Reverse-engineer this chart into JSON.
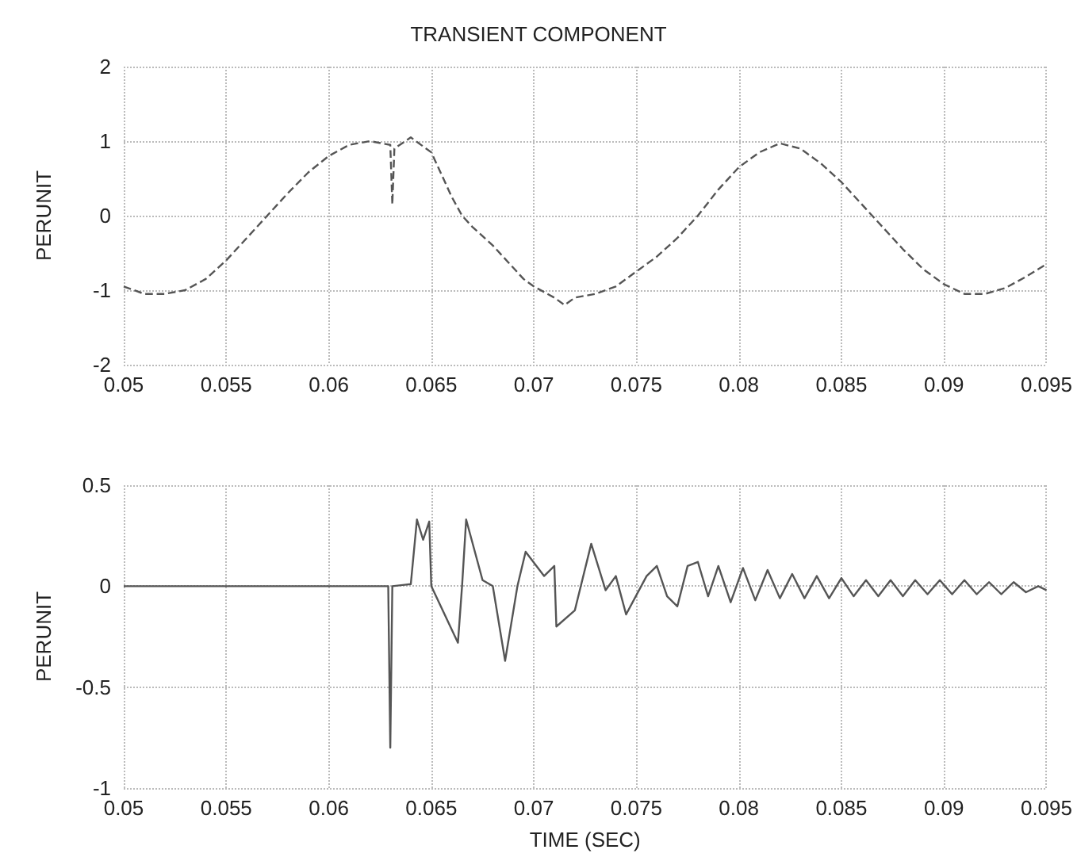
{
  "chart_data": [
    {
      "type": "line",
      "title": "TRANSIENT COMPONENT",
      "ylabel": "PERUNIT",
      "xlim": [
        0.05,
        0.095
      ],
      "xticks": [
        0.05,
        0.055,
        0.06,
        0.065,
        0.07,
        0.075,
        0.08,
        0.085,
        0.09,
        0.095
      ],
      "ylim": [
        -2,
        2
      ],
      "yticks": [
        -2,
        -1,
        0,
        1,
        2
      ],
      "grid": true,
      "line_style": "dashed",
      "marker": "none",
      "series": [
        {
          "color": "#555555",
          "x": [
            0.05,
            0.051,
            0.052,
            0.053,
            0.054,
            0.055,
            0.056,
            0.057,
            0.058,
            0.059,
            0.06,
            0.061,
            0.062,
            0.063,
            0.0631,
            0.0632,
            0.064,
            0.065,
            0.0655,
            0.066,
            0.0665,
            0.067,
            0.068,
            0.069,
            0.0695,
            0.07,
            0.071,
            0.0715,
            0.072,
            0.073,
            0.074,
            0.075,
            0.076,
            0.077,
            0.078,
            0.079,
            0.08,
            0.081,
            0.082,
            0.083,
            0.084,
            0.085,
            0.086,
            0.087,
            0.088,
            0.089,
            0.09,
            0.091,
            0.092,
            0.093,
            0.094,
            0.095
          ],
          "values": [
            -0.95,
            -1.05,
            -1.05,
            -1.0,
            -0.85,
            -0.6,
            -0.3,
            0.0,
            0.3,
            0.58,
            0.8,
            0.95,
            1.0,
            0.95,
            0.15,
            0.9,
            1.05,
            0.85,
            0.55,
            0.25,
            0.0,
            -0.15,
            -0.4,
            -0.7,
            -0.85,
            -0.95,
            -1.1,
            -1.2,
            -1.1,
            -1.05,
            -0.95,
            -0.75,
            -0.55,
            -0.3,
            0.0,
            0.35,
            0.65,
            0.85,
            0.97,
            0.9,
            0.7,
            0.45,
            0.15,
            -0.15,
            -0.45,
            -0.72,
            -0.92,
            -1.05,
            -1.05,
            -0.97,
            -0.82,
            -0.65
          ]
        }
      ]
    },
    {
      "type": "line",
      "xlabel": "TIME (SEC)",
      "ylabel": "PERUNIT",
      "xlim": [
        0.05,
        0.095
      ],
      "xticks": [
        0.05,
        0.055,
        0.06,
        0.065,
        0.07,
        0.075,
        0.08,
        0.085,
        0.09,
        0.095
      ],
      "ylim": [
        -1,
        0.5
      ],
      "yticks": [
        -1,
        -0.5,
        0,
        0.5
      ],
      "grid": true,
      "line_style": "solid",
      "marker": "none",
      "series": [
        {
          "color": "#555555",
          "x": [
            0.05,
            0.055,
            0.06,
            0.0629,
            0.063,
            0.0631,
            0.064,
            0.0643,
            0.0646,
            0.0649,
            0.065,
            0.0663,
            0.0665,
            0.0667,
            0.0675,
            0.068,
            0.0686,
            0.0692,
            0.0696,
            0.0705,
            0.071,
            0.0711,
            0.072,
            0.0728,
            0.0735,
            0.074,
            0.0745,
            0.0755,
            0.076,
            0.0765,
            0.077,
            0.0775,
            0.078,
            0.0785,
            0.079,
            0.0796,
            0.0802,
            0.0808,
            0.0814,
            0.082,
            0.0826,
            0.0832,
            0.0838,
            0.0844,
            0.085,
            0.0856,
            0.0862,
            0.0868,
            0.0874,
            0.088,
            0.0886,
            0.0892,
            0.0898,
            0.0904,
            0.091,
            0.0916,
            0.0922,
            0.0928,
            0.0934,
            0.094,
            0.0946,
            0.095
          ],
          "values": [
            0,
            0,
            0,
            0,
            -0.8,
            0,
            0.01,
            0.33,
            0.23,
            0.32,
            0,
            -0.28,
            0,
            0.33,
            0.03,
            0,
            -0.37,
            0,
            0.17,
            0.05,
            0.1,
            -0.2,
            -0.12,
            0.21,
            -0.02,
            0.05,
            -0.14,
            0.05,
            0.1,
            -0.05,
            -0.1,
            0.1,
            0.12,
            -0.05,
            0.1,
            -0.08,
            0.09,
            -0.07,
            0.08,
            -0.06,
            0.06,
            -0.06,
            0.05,
            -0.06,
            0.04,
            -0.05,
            0.03,
            -0.05,
            0.03,
            -0.05,
            0.03,
            -0.04,
            0.03,
            -0.04,
            0.03,
            -0.04,
            0.02,
            -0.04,
            0.02,
            -0.03,
            0,
            -0.02
          ]
        }
      ]
    }
  ]
}
